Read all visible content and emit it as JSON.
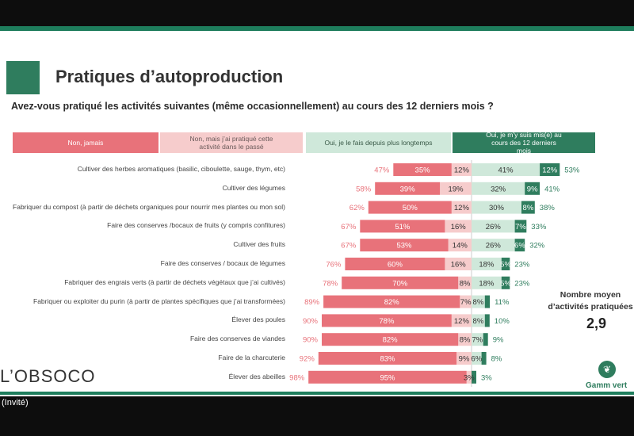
{
  "window": {
    "guest_label": "(Invité)"
  },
  "title": "Pratiques d’autoproduction",
  "question": "Avez-vous pratiqué les activités suivantes (même occasionnellement) au cours des 12 derniers mois ?",
  "legend": [
    {
      "label": "Non, jamais",
      "color": "#e8727a",
      "text_color": "#ffffff"
    },
    {
      "label": "Non, mais j’ai pratiqué cette activité dans le passé",
      "color": "#f6cccc",
      "text_color": "#6a5a5a"
    },
    {
      "label": "Oui, je le fais depuis plus longtemps",
      "color": "#cfe8da",
      "text_color": "#3a5a48"
    },
    {
      "label": "Oui, je m’y suis mis(e) au cours des 12 derniers mois",
      "color": "#2f7d5e",
      "text_color": "#ffffff"
    }
  ],
  "side_panel": {
    "label": "Nombre moyen d’activités pratiquées",
    "value": "2,9"
  },
  "logos": {
    "obsoco": "L’OBSOCO",
    "gamm_vert": "Gamm vert"
  },
  "colors": {
    "never": "#e8727a",
    "past": "#f6cccc",
    "longer": "#cfe8da",
    "recent": "#2f7d5e",
    "no_total": "#e8727a",
    "yes_total": "#2f7d5e"
  },
  "chart_data": {
    "type": "bar",
    "categories": [
      "Cultiver des herbes aromatiques (basilic, ciboulette, sauge, thym, etc)",
      "Cultiver des légumes",
      "Fabriquer du compost (à partir de déchets organiques pour nourrir mes plantes ou mon sol)",
      "Faire des conserves /bocaux de fruits (y compris confitures)",
      "Cultiver des fruits",
      "Faire des conserves / bocaux de légumes",
      "Fabriquer des engrais verts (à partir de déchets végétaux que j’ai cultivés)",
      "Fabriquer ou exploiter du purin (à partir de plantes spécifiques que j’ai transformées)",
      "Élever des poules",
      "Faire des conserves de viandes",
      "Faire de la charcuterie",
      "Élever des abeilles"
    ],
    "series": [
      {
        "name": "Non, jamais",
        "values": [
          35,
          39,
          50,
          51,
          53,
          60,
          70,
          82,
          78,
          82,
          83,
          95
        ]
      },
      {
        "name": "Non, mais j’ai pratiqué cette activité dans le passé",
        "values": [
          12,
          19,
          12,
          16,
          14,
          16,
          8,
          7,
          12,
          8,
          9,
          3
        ]
      },
      {
        "name": "Oui, je le fais depuis plus longtemps",
        "values": [
          41,
          32,
          30,
          26,
          26,
          18,
          18,
          8,
          8,
          7,
          6,
          0
        ]
      },
      {
        "name": "Oui, je m’y suis mis(e) au cours des 12 derniers mois",
        "values": [
          12,
          9,
          8,
          7,
          6,
          5,
          5,
          3,
          2,
          2,
          2,
          2
        ]
      }
    ],
    "totals_no": [
      47,
      58,
      62,
      67,
      67,
      76,
      78,
      89,
      90,
      90,
      92,
      98
    ],
    "totals_yes": [
      53,
      41,
      38,
      33,
      32,
      23,
      23,
      11,
      10,
      9,
      8,
      3
    ]
  }
}
